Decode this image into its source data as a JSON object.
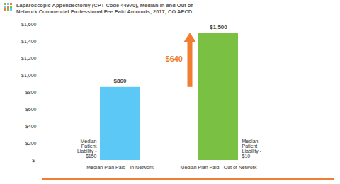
{
  "chart_data": {
    "type": "bar",
    "title": "Laparoscopic Appendectomy (CPT Code 44970), Median In and Out of Network Commercial Professional Fee Paid Amounts, 2017, CO APCD",
    "categories": [
      "Median Plan Paid - In Network",
      "Median Plan Paid - Out of Network"
    ],
    "values": [
      860,
      1500
    ],
    "value_labels": [
      "$860",
      "$1,500"
    ],
    "colors": [
      "#5bc8f5",
      "#7ac143"
    ],
    "data_labels": true,
    "ylim": [
      0,
      1600
    ],
    "yticks": [
      {
        "value": 0,
        "label": "$-"
      },
      {
        "value": 200,
        "label": "$200"
      },
      {
        "value": 400,
        "label": "$400"
      },
      {
        "value": 600,
        "label": "$600"
      },
      {
        "value": 800,
        "label": "$800"
      },
      {
        "value": 1000,
        "label": "$1,000"
      },
      {
        "value": 1200,
        "label": "$1,200"
      },
      {
        "value": 1400,
        "label": "$1,400"
      },
      {
        "value": 1600,
        "label": "$1,600"
      }
    ],
    "grid": false,
    "annotations": [
      {
        "text": "$640",
        "color": "#f07d32"
      },
      {
        "text": "Median Patient Liability - $150",
        "category": "Median Plan Paid - In Network"
      },
      {
        "text": "Median Patient Liability - $10",
        "category": "Median Plan Paid - Out of Network"
      }
    ]
  }
}
